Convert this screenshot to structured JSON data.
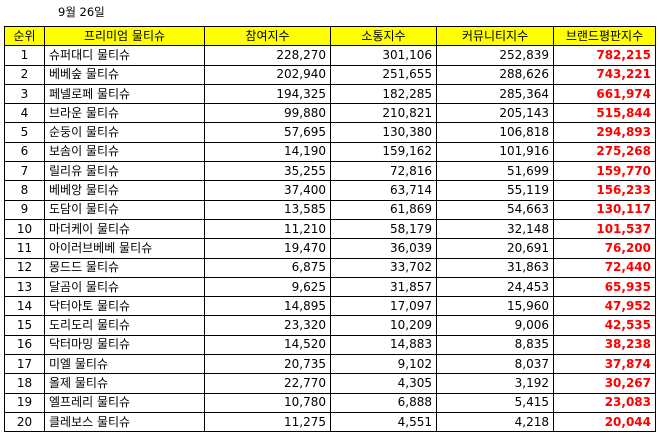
{
  "date": "9월 26일",
  "table": {
    "header": [
      "순위",
      "프리미엄 물티슈",
      "참여지수",
      "소통지수",
      "커뮤니티지수",
      "브랜드평판지수"
    ],
    "rows": [
      [
        "1",
        "슈퍼대디 물티슈",
        "228,270",
        "301,106",
        "252,839",
        "782,215"
      ],
      [
        "2",
        "베베숲 물티슈",
        "202,940",
        "251,655",
        "288,626",
        "743,221"
      ],
      [
        "3",
        "페넬로페 물티슈",
        "194,325",
        "182,285",
        "285,364",
        "661,974"
      ],
      [
        "4",
        "브라운 물티슈",
        "99,880",
        "210,821",
        "205,143",
        "515,844"
      ],
      [
        "5",
        "순둥이 물티슈",
        "57,695",
        "130,380",
        "106,818",
        "294,893"
      ],
      [
        "6",
        "보솜이 물티슈",
        "14,190",
        "159,162",
        "101,916",
        "275,268"
      ],
      [
        "7",
        "릴리유 물티슈",
        "35,255",
        "72,816",
        "51,699",
        "159,770"
      ],
      [
        "8",
        "베베앙 물티슈",
        "37,400",
        "63,714",
        "55,119",
        "156,233"
      ],
      [
        "9",
        "도담이 물티슈",
        "13,585",
        "61,869",
        "54,663",
        "130,117"
      ],
      [
        "10",
        "마더케이 물티슈",
        "11,210",
        "58,179",
        "32,148",
        "101,537"
      ],
      [
        "11",
        "아이러브베베 물티슈",
        "19,470",
        "36,039",
        "20,691",
        "76,200"
      ],
      [
        "12",
        "몽드드 물티슈",
        "6,875",
        "33,702",
        "31,863",
        "72,440"
      ],
      [
        "13",
        "달곰이 물티슈",
        "9,625",
        "31,857",
        "24,453",
        "65,935"
      ],
      [
        "14",
        "닥터아토 물티슈",
        "14,895",
        "17,097",
        "15,960",
        "47,952"
      ],
      [
        "15",
        "도리도리 물티슈",
        "23,320",
        "10,209",
        "9,006",
        "42,535"
      ],
      [
        "16",
        "닥터마밍 물티슈",
        "14,520",
        "14,883",
        "8,835",
        "38,238"
      ],
      [
        "17",
        "미엘 물티슈",
        "20,735",
        "9,102",
        "8,037",
        "37,874"
      ],
      [
        "18",
        "올제 물티슈",
        "22,770",
        "4,305",
        "3,192",
        "30,267"
      ],
      [
        "19",
        "엘프레리 물티슈",
        "10,780",
        "6,888",
        "5,415",
        "23,083"
      ],
      [
        "20",
        "클레보스 물티슈",
        "11,275",
        "4,551",
        "4,218",
        "20,044"
      ]
    ]
  }
}
